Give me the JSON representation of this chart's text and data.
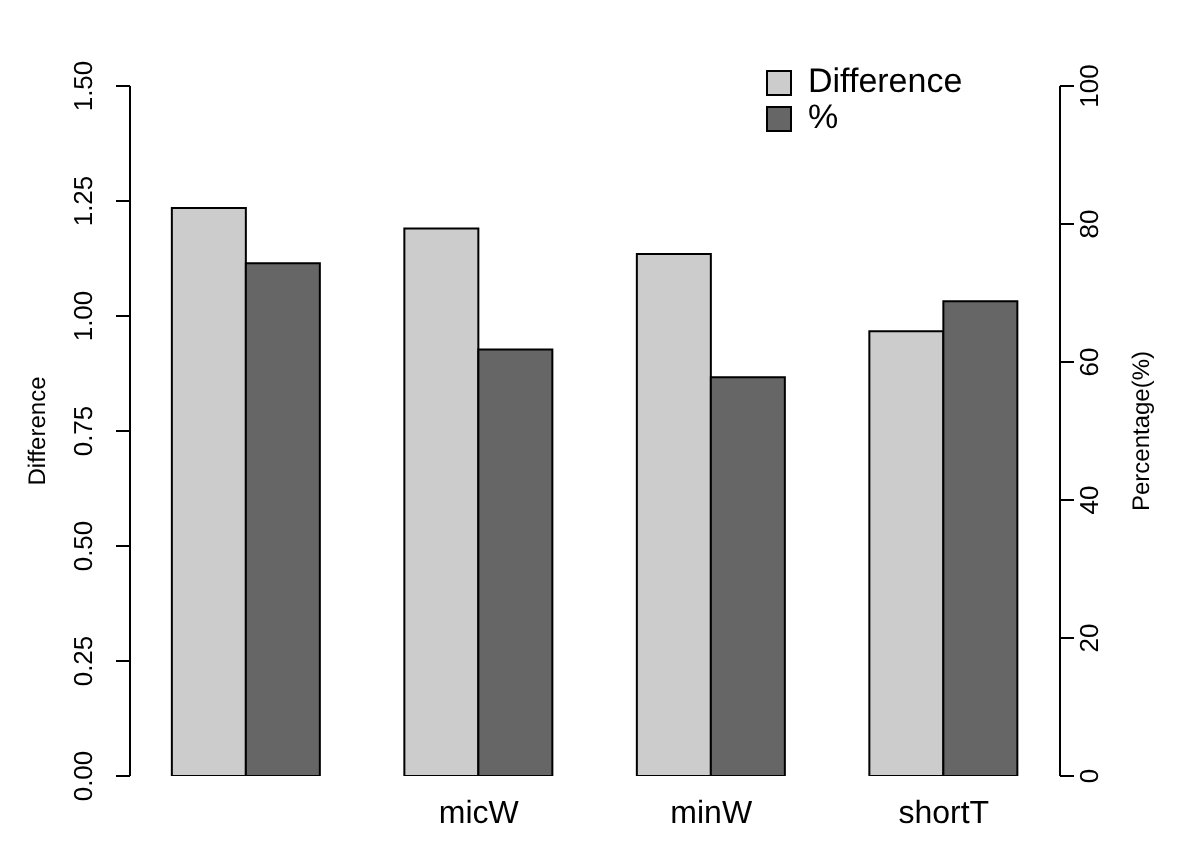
{
  "chart_data": {
    "type": "bar",
    "categories": [
      null,
      "micW",
      "minW",
      "shortT"
    ],
    "series": [
      {
        "name": "Difference",
        "color": "#cccccc",
        "values": [
          1.235,
          1.19,
          1.135,
          0.967
        ]
      },
      {
        "name": "%",
        "color": "#666666",
        "values": [
          74.3,
          61.8,
          57.8,
          68.8
        ],
        "axis": "y2"
      }
    ],
    "ylabel": "Difference",
    "y2label": "Percentage(%)",
    "ylim": [
      0,
      1.5
    ],
    "yticks": [
      {
        "value": 0,
        "label": "0.00"
      },
      {
        "value": 0.25,
        "label": "0.25"
      },
      {
        "value": 0.5,
        "label": "0.50"
      },
      {
        "value": 0.75,
        "label": "0.75"
      },
      {
        "value": 1,
        "label": "1.00"
      },
      {
        "value": 1.25,
        "label": "1.25"
      },
      {
        "value": 1.5,
        "label": "1.50"
      }
    ],
    "y2lim": [
      0,
      100
    ],
    "y2ticks": [
      0,
      20,
      40,
      60,
      80,
      100
    ],
    "legend": "top right",
    "grid": false
  }
}
